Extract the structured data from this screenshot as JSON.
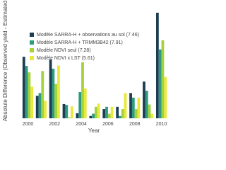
{
  "chart_data": {
    "type": "bar",
    "y_label": "Absolute Difference (Observed yield - Estimated",
    "x_label": "Year",
    "categories": [
      "2000",
      null,
      "2002",
      null,
      "2004",
      null,
      "2006",
      null,
      "2008",
      null,
      "2010"
    ],
    "series": [
      {
        "name": "Modèle SARRA-H + observations au sol (7.46)",
        "color": "#1d3d52",
        "values": [
          1.34,
          0.49,
          1.28,
          0.31,
          0.11,
          0.05,
          0.2,
          0.25,
          0.55,
          0.8,
          2.3
        ]
      },
      {
        "name": "Modèle SARRA-H + TRMM3B42 (7.91)",
        "color": "#2e9b7e",
        "values": [
          1.14,
          0.55,
          1.08,
          0.29,
          0.57,
          0.1,
          0.25,
          0.05,
          0.45,
          0.6,
          1.5
        ]
      },
      {
        "name": "Modèle NDVI seul (7.28)",
        "color": "#a3d23a",
        "values": [
          1.0,
          1.03,
          0.75,
          0.02,
          1.22,
          0.25,
          0.1,
          0.2,
          0.2,
          0.3,
          1.7
        ]
      },
      {
        "name": "Modèle NDVI x LST (5.61)",
        "color": "#e9e83c",
        "values": [
          0.69,
          0.38,
          1.15,
          0.26,
          0.65,
          0.32,
          0.25,
          0.55,
          0.45,
          0.1,
          0.9
        ]
      }
    ],
    "ylim": [
      0,
      2.5
    ]
  }
}
